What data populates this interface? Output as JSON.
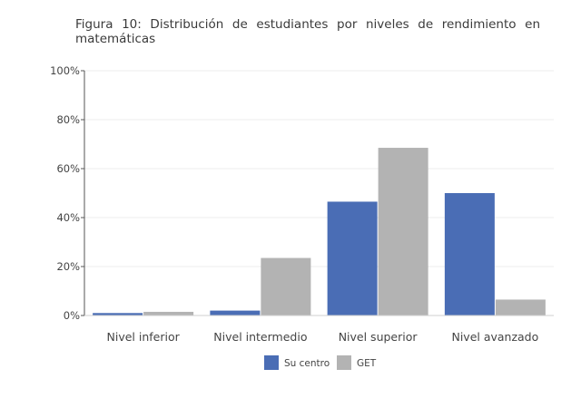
{
  "figure_title": "Figura 10:  Distribución de estudiantes por niveles de rendimiento en matemáticas",
  "chart_data": {
    "type": "bar",
    "categories": [
      "Nivel inferior",
      "Nivel intermedio",
      "Nivel superior",
      "Nivel avanzado"
    ],
    "series": [
      {
        "name": "Su centro",
        "color": "#4a6db5",
        "values": [
          1,
          2,
          46.5,
          50
        ]
      },
      {
        "name": "GET",
        "color": "#b3b3b3",
        "values": [
          1.5,
          23.5,
          68.5,
          6.5
        ]
      }
    ],
    "y_ticks": [
      "0%",
      "20%",
      "40%",
      "60%",
      "80%",
      "100%"
    ],
    "ylim": [
      0,
      100
    ],
    "grid": true,
    "legend_position": "bottom-center",
    "title": "",
    "xlabel": "",
    "ylabel": ""
  }
}
